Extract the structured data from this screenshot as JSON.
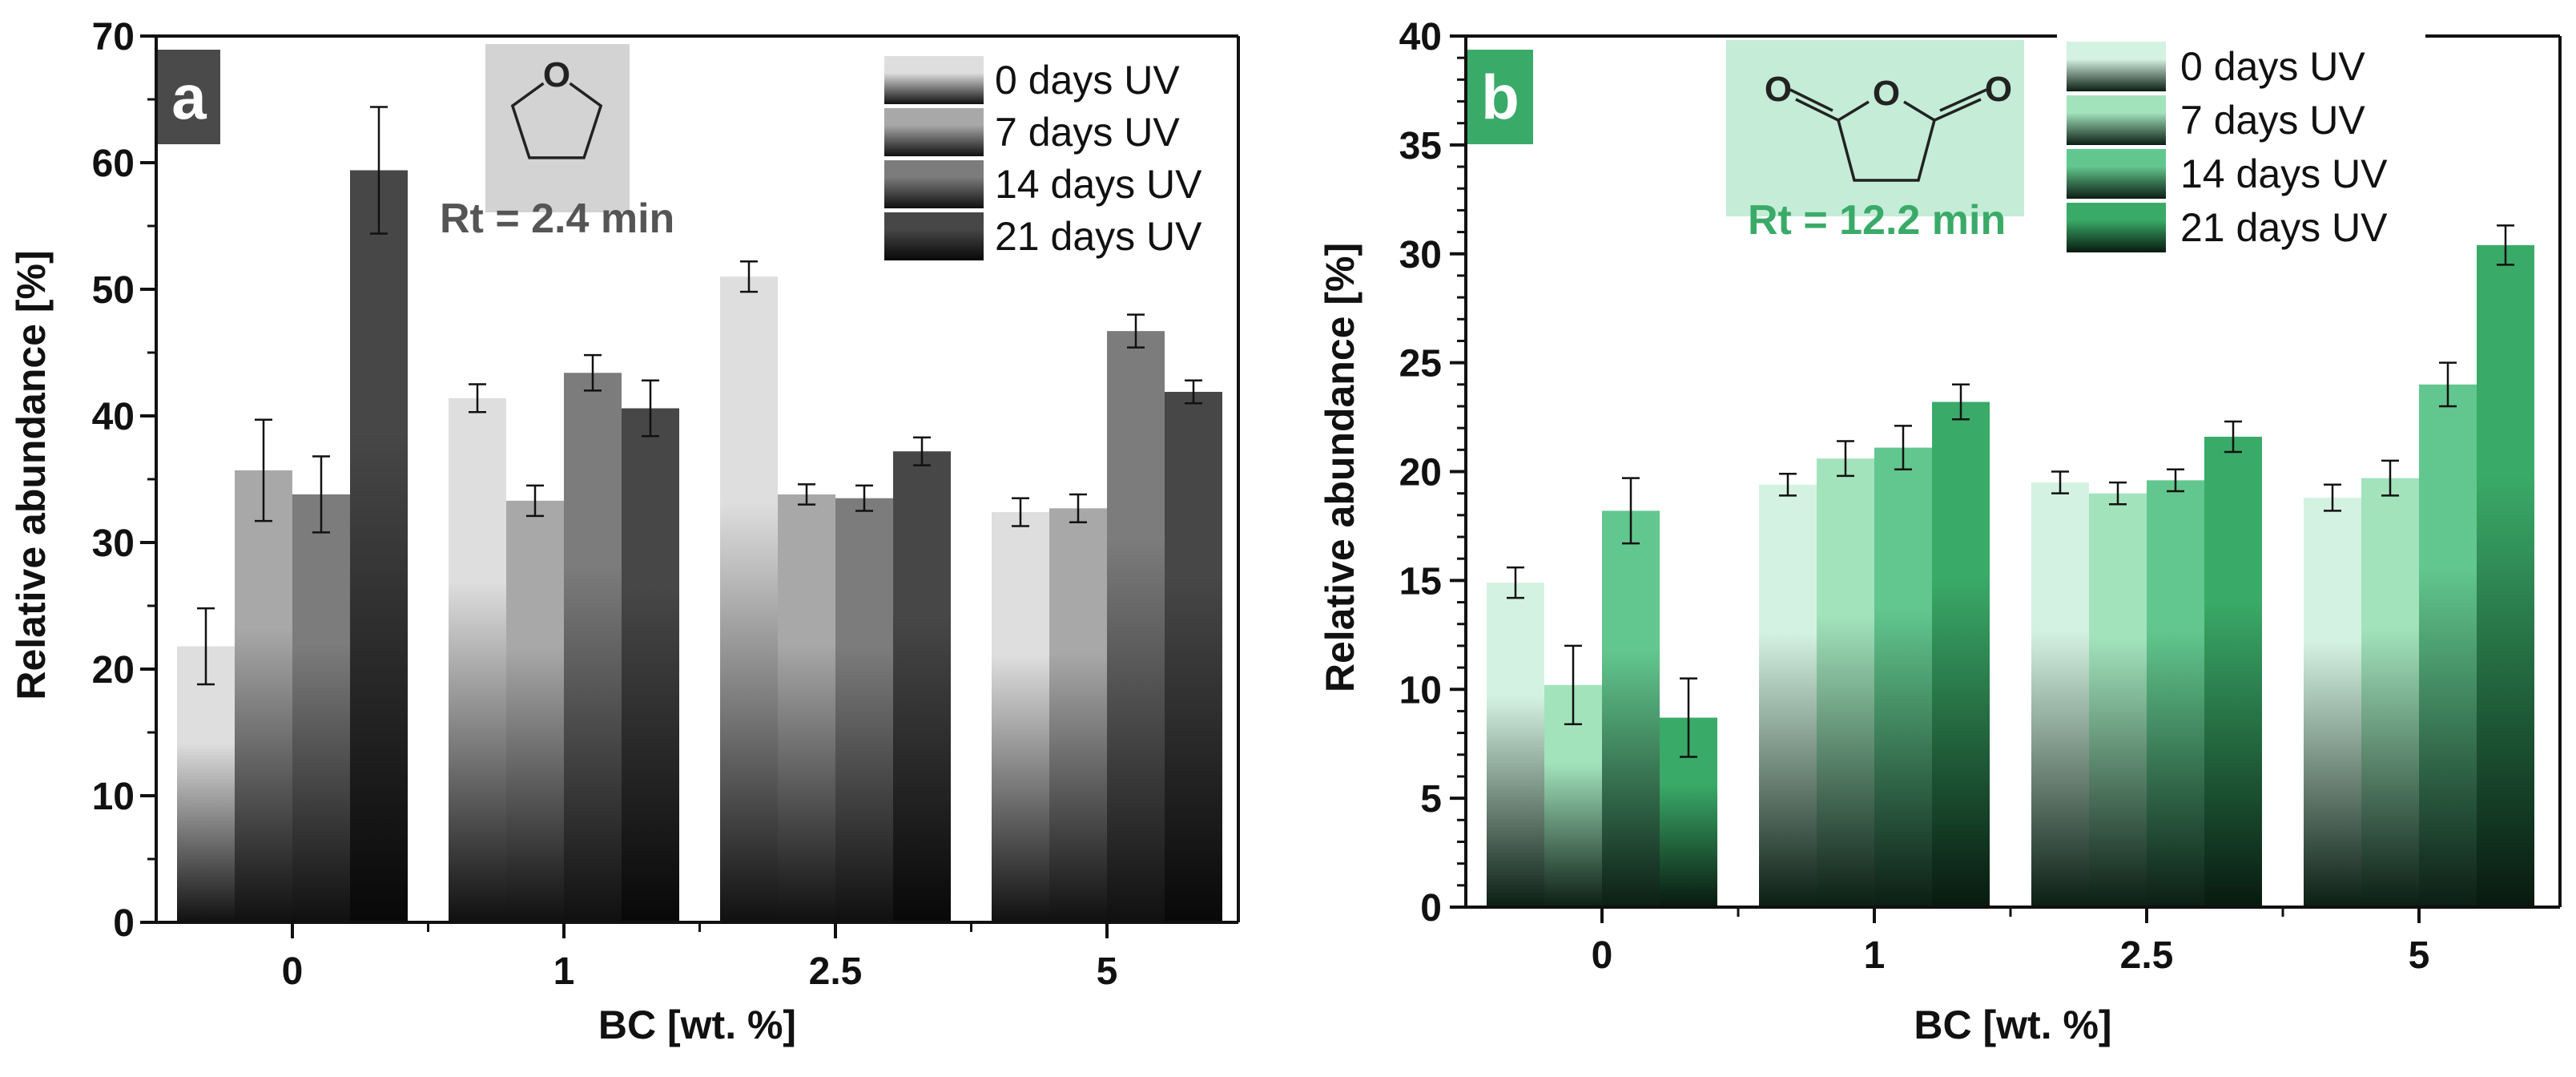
{
  "chart_data": [
    {
      "type": "bar",
      "panel_label": "a",
      "xlabel": "BC [wt. %]",
      "ylabel": "Relative abundance [%]",
      "ylim": [
        0,
        70
      ],
      "yticks": [
        0,
        10,
        20,
        30,
        40,
        50,
        60,
        70
      ],
      "categories": [
        "0",
        "1",
        "2.5",
        "5"
      ],
      "legend_position": "top-right",
      "annotation": "Rt = 2.4 min",
      "molecule": "tetrahydrofuran",
      "molecule_atoms": [
        "O"
      ],
      "accent_color": "#4a4a4a",
      "inset_color": "#d3d3d3",
      "annotation_color": "#555555",
      "series": [
        {
          "name": "0 days UV",
          "values": [
            21.8,
            41.4,
            51.0,
            32.4
          ],
          "errors": [
            3.0,
            1.1,
            1.2,
            1.1
          ],
          "top_color": "#dedede",
          "bottom_color": "#101010"
        },
        {
          "name": "7 days UV",
          "values": [
            35.7,
            33.3,
            33.8,
            32.7
          ],
          "errors": [
            4.0,
            1.2,
            0.8,
            1.1
          ],
          "top_color": "#a8a8a8",
          "bottom_color": "#101010"
        },
        {
          "name": "14 days UV",
          "values": [
            33.8,
            43.4,
            33.5,
            46.7
          ],
          "errors": [
            3.0,
            1.4,
            1.0,
            1.3
          ],
          "top_color": "#7c7c7c",
          "bottom_color": "#101010"
        },
        {
          "name": "21 days UV",
          "values": [
            59.4,
            40.6,
            37.2,
            41.9
          ],
          "errors": [
            5.0,
            2.2,
            1.1,
            0.9
          ],
          "top_color": "#474747",
          "bottom_color": "#080808"
        }
      ]
    },
    {
      "type": "bar",
      "panel_label": "b",
      "xlabel": "BC [wt. %]",
      "ylabel": "Relative abundance [%]",
      "ylim": [
        0,
        40
      ],
      "yticks": [
        0,
        5,
        10,
        15,
        20,
        25,
        30,
        35,
        40
      ],
      "categories": [
        "0",
        "1",
        "2.5",
        "5"
      ],
      "legend_position": "top-right",
      "annotation": "Rt = 12.2 min",
      "molecule": "succinic anhydride",
      "molecule_atoms": [
        "O",
        "O",
        "O"
      ],
      "accent_color": "#3aaa68",
      "inset_color": "#c4ecd6",
      "annotation_color": "#3aaa68",
      "series": [
        {
          "name": "0 days UV",
          "values": [
            14.9,
            19.4,
            19.5,
            18.8
          ],
          "errors": [
            0.7,
            0.5,
            0.5,
            0.6
          ],
          "top_color": "#d4f2e1",
          "bottom_color": "#0c1e14"
        },
        {
          "name": "7 days UV",
          "values": [
            10.2,
            20.6,
            19.0,
            19.7
          ],
          "errors": [
            1.8,
            0.8,
            0.5,
            0.8
          ],
          "top_color": "#a2e3bc",
          "bottom_color": "#0c1e14"
        },
        {
          "name": "14 days UV",
          "values": [
            18.2,
            21.1,
            19.6,
            24.0
          ],
          "errors": [
            1.5,
            1.0,
            0.5,
            1.0
          ],
          "top_color": "#62c78e",
          "bottom_color": "#0c1e14"
        },
        {
          "name": "21 days UV",
          "values": [
            8.7,
            23.2,
            21.6,
            30.4
          ],
          "errors": [
            1.8,
            0.8,
            0.7,
            0.9
          ],
          "top_color": "#3aaa68",
          "bottom_color": "#08190f"
        }
      ]
    }
  ]
}
